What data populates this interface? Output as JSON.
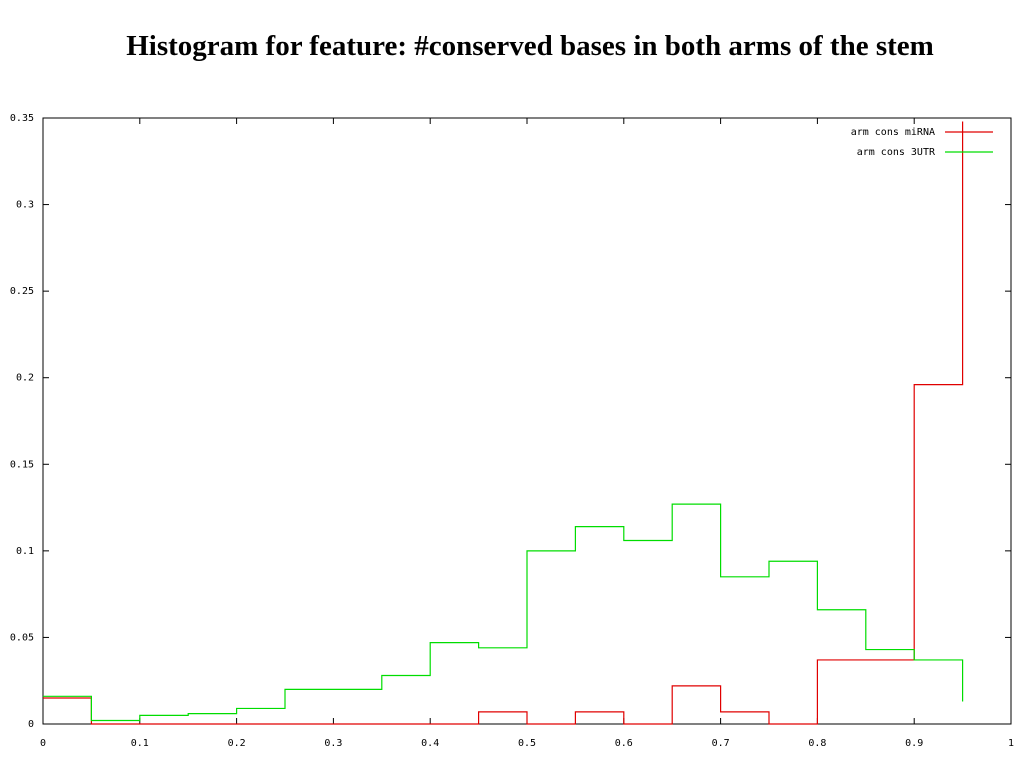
{
  "chart_data": {
    "type": "line",
    "title": "Histogram for feature: #conserved bases in both arms of the stem",
    "xlabel": "",
    "ylabel": "",
    "xlim": [
      0,
      1
    ],
    "ylim": [
      0,
      0.35
    ],
    "x_ticks": [
      "0",
      "0.1",
      "0.2",
      "0.3",
      "0.4",
      "0.5",
      "0.6",
      "0.7",
      "0.8",
      "0.9",
      "1"
    ],
    "y_ticks": [
      "0",
      "0.05",
      "0.1",
      "0.15",
      "0.2",
      "0.25",
      "0.3",
      "0.35"
    ],
    "grid": false,
    "legend_position": "top-right",
    "bins": [
      0,
      0.05,
      0.1,
      0.15,
      0.2,
      0.25,
      0.3,
      0.35,
      0.4,
      0.45,
      0.5,
      0.55,
      0.6,
      0.65,
      0.7,
      0.75,
      0.8,
      0.85,
      0.9,
      0.95
    ],
    "series": [
      {
        "name": "arm cons miRNA",
        "color": "#e00000",
        "values": [
          0.015,
          0,
          0,
          0,
          0,
          0,
          0,
          0,
          0,
          0.007,
          0,
          0.007,
          0,
          0.022,
          0.007,
          0,
          0.037,
          0.037,
          0.196,
          0.348
        ]
      },
      {
        "name": "arm cons 3UTR",
        "color": "#00dd00",
        "values": [
          0.016,
          0.002,
          0.005,
          0.006,
          0.009,
          0.02,
          0.02,
          0.028,
          0.047,
          0.044,
          0.1,
          0.114,
          0.106,
          0.127,
          0.085,
          0.094,
          0.066,
          0.043,
          0.037,
          0.013
        ]
      }
    ]
  }
}
